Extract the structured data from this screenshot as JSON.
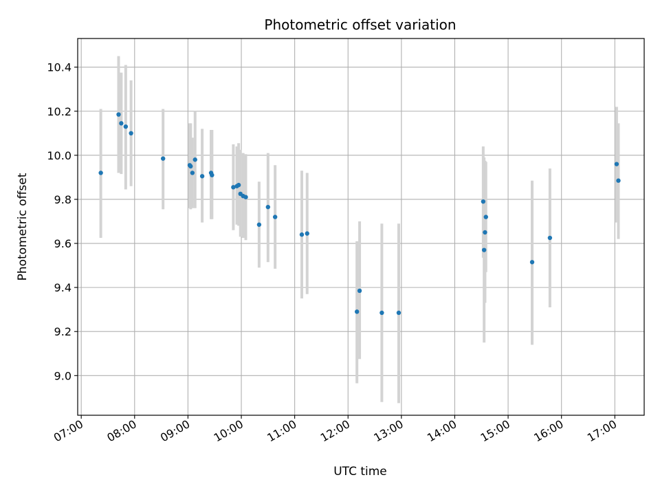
{
  "chart_data": {
    "type": "scatter",
    "title": "Photometric offset variation",
    "xlabel": "UTC time",
    "ylabel": "Photometric offset",
    "x_ticks": [
      "07:00",
      "08:00",
      "09:00",
      "10:00",
      "11:00",
      "12:00",
      "13:00",
      "14:00",
      "15:00",
      "16:00",
      "17:00"
    ],
    "y_ticks": [
      "9.0",
      "9.2",
      "9.4",
      "9.6",
      "9.8",
      "10.0",
      "10.2",
      "10.4"
    ],
    "xlim": [
      "06:56",
      "17:33"
    ],
    "ylim": [
      8.82,
      10.53
    ],
    "grid": true,
    "colors": {
      "marker": "#1f77b4",
      "errorbar": "#d3d3d3",
      "grid": "#b0b0b0"
    },
    "points": [
      {
        "t": "07:22",
        "y": 9.92,
        "lo": 9.625,
        "hi": 10.21
      },
      {
        "t": "07:42",
        "y": 10.185,
        "lo": 9.92,
        "hi": 10.45
      },
      {
        "t": "07:45",
        "y": 10.145,
        "lo": 9.915,
        "hi": 10.375
      },
      {
        "t": "07:50",
        "y": 10.13,
        "lo": 9.845,
        "hi": 10.41
      },
      {
        "t": "07:56",
        "y": 10.1,
        "lo": 9.86,
        "hi": 10.34
      },
      {
        "t": "08:32",
        "y": 9.985,
        "lo": 9.755,
        "hi": 10.21
      },
      {
        "t": "09:02",
        "y": 9.955,
        "lo": 9.76,
        "hi": 10.145
      },
      {
        "t": "09:03",
        "y": 9.95,
        "lo": 9.755,
        "hi": 10.145
      },
      {
        "t": "09:05",
        "y": 9.92,
        "lo": 9.76,
        "hi": 10.08
      },
      {
        "t": "09:08",
        "y": 9.98,
        "lo": 9.76,
        "hi": 10.2
      },
      {
        "t": "09:16",
        "y": 9.905,
        "lo": 9.695,
        "hi": 10.12
      },
      {
        "t": "09:26",
        "y": 9.92,
        "lo": 9.71,
        "hi": 10.115
      },
      {
        "t": "09:27",
        "y": 9.91,
        "lo": 9.71,
        "hi": 10.115
      },
      {
        "t": "09:51",
        "y": 9.855,
        "lo": 9.66,
        "hi": 10.05
      },
      {
        "t": "09:55",
        "y": 9.86,
        "lo": 9.685,
        "hi": 10.04
      },
      {
        "t": "09:57",
        "y": 9.865,
        "lo": 9.68,
        "hi": 10.055
      },
      {
        "t": "09:59",
        "y": 9.825,
        "lo": 9.63,
        "hi": 10.025
      },
      {
        "t": "10:02",
        "y": 9.815,
        "lo": 9.625,
        "hi": 10.01
      },
      {
        "t": "10:05",
        "y": 9.81,
        "lo": 9.615,
        "hi": 10.005
      },
      {
        "t": "10:20",
        "y": 9.685,
        "lo": 9.49,
        "hi": 9.88
      },
      {
        "t": "10:30",
        "y": 9.765,
        "lo": 9.515,
        "hi": 10.01
      },
      {
        "t": "10:38",
        "y": 9.72,
        "lo": 9.485,
        "hi": 9.955
      },
      {
        "t": "11:08",
        "y": 9.64,
        "lo": 9.35,
        "hi": 9.93
      },
      {
        "t": "11:14",
        "y": 9.645,
        "lo": 9.37,
        "hi": 9.92
      },
      {
        "t": "12:10",
        "y": 9.29,
        "lo": 8.965,
        "hi": 9.61
      },
      {
        "t": "12:13",
        "y": 9.385,
        "lo": 9.075,
        "hi": 9.7
      },
      {
        "t": "12:38",
        "y": 9.285,
        "lo": 8.88,
        "hi": 9.69
      },
      {
        "t": "12:57",
        "y": 9.285,
        "lo": 8.875,
        "hi": 9.69
      },
      {
        "t": "14:32",
        "y": 9.79,
        "lo": 9.535,
        "hi": 10.04
      },
      {
        "t": "14:33",
        "y": 9.57,
        "lo": 9.15,
        "hi": 9.99
      },
      {
        "t": "14:34",
        "y": 9.65,
        "lo": 9.33,
        "hi": 9.975
      },
      {
        "t": "14:35",
        "y": 9.72,
        "lo": 9.47,
        "hi": 9.97
      },
      {
        "t": "15:27",
        "y": 9.515,
        "lo": 9.14,
        "hi": 9.885
      },
      {
        "t": "15:47",
        "y": 9.625,
        "lo": 9.31,
        "hi": 9.94
      },
      {
        "t": "17:02",
        "y": 9.96,
        "lo": 9.695,
        "hi": 10.22
      },
      {
        "t": "17:04",
        "y": 9.885,
        "lo": 9.62,
        "hi": 10.145
      }
    ]
  }
}
